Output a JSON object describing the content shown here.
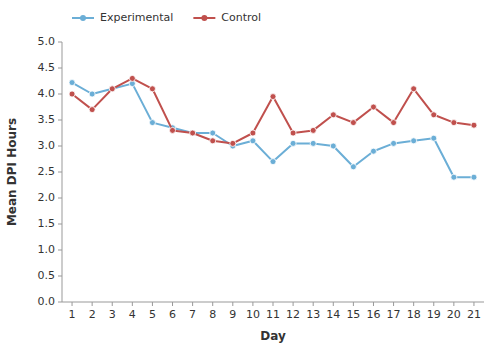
{
  "chart_data": {
    "type": "line",
    "xlabel": "Day",
    "ylabel": "Mean DPI Hours",
    "x": [
      1,
      2,
      3,
      4,
      5,
      6,
      7,
      8,
      9,
      10,
      11,
      12,
      13,
      14,
      15,
      16,
      17,
      18,
      19,
      20,
      21
    ],
    "series": [
      {
        "name": "Experimental",
        "color": "#6baed6",
        "values": [
          4.22,
          4.0,
          4.1,
          4.2,
          3.45,
          3.35,
          3.25,
          3.25,
          3.0,
          3.1,
          2.7,
          3.05,
          3.05,
          3.0,
          2.6,
          2.9,
          3.05,
          3.1,
          3.15,
          2.4,
          2.4
        ]
      },
      {
        "name": "Control",
        "color": "#c0504d",
        "values": [
          4.0,
          3.7,
          4.1,
          4.3,
          4.1,
          3.3,
          3.25,
          3.1,
          3.05,
          3.25,
          3.95,
          3.25,
          3.3,
          3.6,
          3.45,
          3.75,
          3.45,
          4.1,
          3.6,
          3.45,
          3.4
        ]
      }
    ],
    "xlim": [
      0.5,
      21.5
    ],
    "xticks": [
      1,
      2,
      3,
      4,
      5,
      6,
      7,
      8,
      9,
      10,
      11,
      12,
      13,
      14,
      15,
      16,
      17,
      18,
      19,
      20,
      21
    ],
    "ylim": [
      0.0,
      5.0
    ],
    "yticks": [
      {
        "value": 0.0,
        "label": "0.0"
      },
      0.5,
      {
        "value": 1.0,
        "label": "1.0"
      },
      1.5,
      {
        "value": 2.0,
        "label": "2.0"
      },
      2.5,
      {
        "value": 3.0,
        "label": "3.0"
      },
      3.5,
      {
        "value": 4.0,
        "label": "4.0"
      },
      4.5,
      {
        "value": 5.0,
        "label": "5.0"
      }
    ],
    "marker": "circle",
    "legend": "top",
    "grid": false
  }
}
